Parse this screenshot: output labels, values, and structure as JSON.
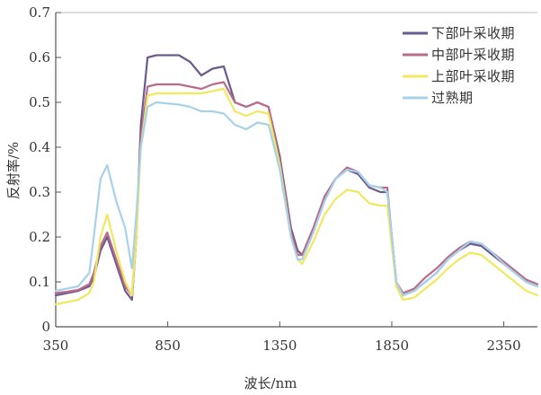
{
  "chart_data": {
    "type": "line",
    "xlabel": "波长/nm",
    "ylabel": "反射率/%",
    "xlim": [
      350,
      2500
    ],
    "ylim": [
      0,
      0.7
    ],
    "x_ticks": [
      350,
      850,
      1350,
      1850,
      2350
    ],
    "y_ticks": [
      0,
      0.1,
      0.2,
      0.3,
      0.4,
      0.5,
      0.6,
      0.7
    ],
    "x_tick_labels": [
      "350",
      "850",
      "1350",
      "1850",
      "2350"
    ],
    "y_tick_labels": [
      "0",
      "0.1",
      "0.2",
      "0.3",
      "0.4",
      "0.5",
      "0.6",
      "0.7"
    ],
    "grid": false,
    "legend_position": "top-right",
    "series": [
      {
        "name": "下部叶采收期",
        "color": "#6b5a8e",
        "x": [
          350,
          400,
          450,
          500,
          520,
          550,
          580,
          620,
          660,
          690,
          710,
          730,
          760,
          800,
          900,
          950,
          1000,
          1050,
          1100,
          1150,
          1200,
          1250,
          1300,
          1350,
          1400,
          1430,
          1450,
          1500,
          1550,
          1600,
          1650,
          1700,
          1750,
          1800,
          1830,
          1850,
          1870,
          1900,
          1950,
          2000,
          2050,
          2100,
          2150,
          2200,
          2250,
          2300,
          2350,
          2400,
          2450,
          2500
        ],
        "y": [
          0.07,
          0.075,
          0.08,
          0.09,
          0.11,
          0.17,
          0.2,
          0.14,
          0.08,
          0.06,
          0.2,
          0.45,
          0.6,
          0.605,
          0.605,
          0.59,
          0.56,
          0.575,
          0.58,
          0.5,
          0.49,
          0.5,
          0.49,
          0.38,
          0.22,
          0.17,
          0.16,
          0.22,
          0.29,
          0.33,
          0.35,
          0.34,
          0.31,
          0.3,
          0.3,
          0.2,
          0.1,
          0.07,
          0.08,
          0.1,
          0.12,
          0.15,
          0.17,
          0.185,
          0.18,
          0.16,
          0.14,
          0.12,
          0.1,
          0.09
        ]
      },
      {
        "name": "中部叶采收期",
        "color": "#b86c8a",
        "x": [
          350,
          400,
          450,
          500,
          520,
          550,
          580,
          620,
          660,
          690,
          710,
          730,
          760,
          800,
          900,
          950,
          1000,
          1050,
          1100,
          1150,
          1200,
          1250,
          1300,
          1350,
          1400,
          1430,
          1450,
          1500,
          1550,
          1600,
          1650,
          1700,
          1750,
          1800,
          1830,
          1850,
          1870,
          1900,
          1950,
          2000,
          2050,
          2100,
          2150,
          2200,
          2250,
          2300,
          2350,
          2400,
          2450,
          2500
        ],
        "y": [
          0.075,
          0.078,
          0.082,
          0.095,
          0.12,
          0.18,
          0.21,
          0.15,
          0.09,
          0.07,
          0.2,
          0.42,
          0.535,
          0.54,
          0.54,
          0.535,
          0.53,
          0.54,
          0.545,
          0.5,
          0.49,
          0.5,
          0.49,
          0.37,
          0.21,
          0.16,
          0.16,
          0.22,
          0.29,
          0.33,
          0.355,
          0.345,
          0.315,
          0.31,
          0.31,
          0.2,
          0.1,
          0.075,
          0.085,
          0.11,
          0.13,
          0.155,
          0.175,
          0.19,
          0.185,
          0.165,
          0.145,
          0.125,
          0.105,
          0.095
        ]
      },
      {
        "name": "上部叶采收期",
        "color": "#f0e860",
        "x": [
          350,
          400,
          450,
          500,
          520,
          550,
          580,
          620,
          660,
          690,
          710,
          730,
          760,
          800,
          900,
          950,
          1000,
          1050,
          1100,
          1150,
          1200,
          1250,
          1300,
          1350,
          1400,
          1430,
          1450,
          1500,
          1550,
          1600,
          1650,
          1700,
          1750,
          1800,
          1830,
          1850,
          1870,
          1900,
          1950,
          2000,
          2050,
          2100,
          2150,
          2200,
          2250,
          2300,
          2350,
          2400,
          2450,
          2500
        ],
        "y": [
          0.05,
          0.055,
          0.06,
          0.075,
          0.1,
          0.2,
          0.25,
          0.17,
          0.1,
          0.07,
          0.2,
          0.4,
          0.515,
          0.52,
          0.52,
          0.52,
          0.52,
          0.525,
          0.53,
          0.48,
          0.47,
          0.48,
          0.475,
          0.36,
          0.2,
          0.15,
          0.14,
          0.19,
          0.25,
          0.285,
          0.305,
          0.3,
          0.275,
          0.27,
          0.27,
          0.18,
          0.09,
          0.06,
          0.065,
          0.085,
          0.105,
          0.13,
          0.15,
          0.165,
          0.16,
          0.14,
          0.12,
          0.1,
          0.08,
          0.07
        ]
      },
      {
        "name": "过熟期",
        "color": "#a8d2e8",
        "x": [
          350,
          400,
          450,
          500,
          520,
          550,
          580,
          620,
          660,
          690,
          710,
          730,
          760,
          800,
          900,
          950,
          1000,
          1050,
          1100,
          1150,
          1200,
          1250,
          1300,
          1350,
          1400,
          1430,
          1450,
          1500,
          1550,
          1600,
          1650,
          1700,
          1750,
          1800,
          1830,
          1850,
          1870,
          1900,
          1950,
          2000,
          2050,
          2100,
          2150,
          2200,
          2250,
          2300,
          2350,
          2400,
          2450,
          2500
        ],
        "y": [
          0.08,
          0.085,
          0.09,
          0.12,
          0.2,
          0.33,
          0.36,
          0.28,
          0.22,
          0.13,
          0.25,
          0.4,
          0.49,
          0.5,
          0.495,
          0.49,
          0.48,
          0.48,
          0.475,
          0.45,
          0.44,
          0.455,
          0.45,
          0.35,
          0.2,
          0.15,
          0.15,
          0.21,
          0.28,
          0.33,
          0.35,
          0.345,
          0.315,
          0.31,
          0.3,
          0.2,
          0.1,
          0.07,
          0.08,
          0.1,
          0.12,
          0.15,
          0.17,
          0.19,
          0.185,
          0.165,
          0.14,
          0.12,
          0.1,
          0.09
        ]
      }
    ]
  }
}
